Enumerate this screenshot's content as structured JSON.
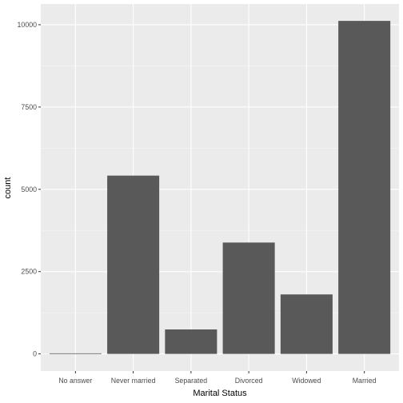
{
  "chart_data": {
    "type": "bar",
    "title": "",
    "xlabel": "Marital Status",
    "ylabel": "count",
    "categories": [
      "No answer",
      "Never married",
      "Separated",
      "Divorced",
      "Widowed",
      "Married"
    ],
    "values": [
      17,
      5416,
      743,
      3383,
      1807,
      10117
    ],
    "ylim": [
      -520,
      10630
    ],
    "yticks": [
      0,
      2500,
      5000,
      7500,
      10000
    ],
    "ytick_labels": [
      "0",
      "2500",
      "5000",
      "7500",
      "10000"
    ],
    "grid": true,
    "legend": "none",
    "colors": {
      "panel": "#ebebeb",
      "grid_major": "#ffffff",
      "bar": "#595959",
      "tick": "#333333"
    }
  }
}
